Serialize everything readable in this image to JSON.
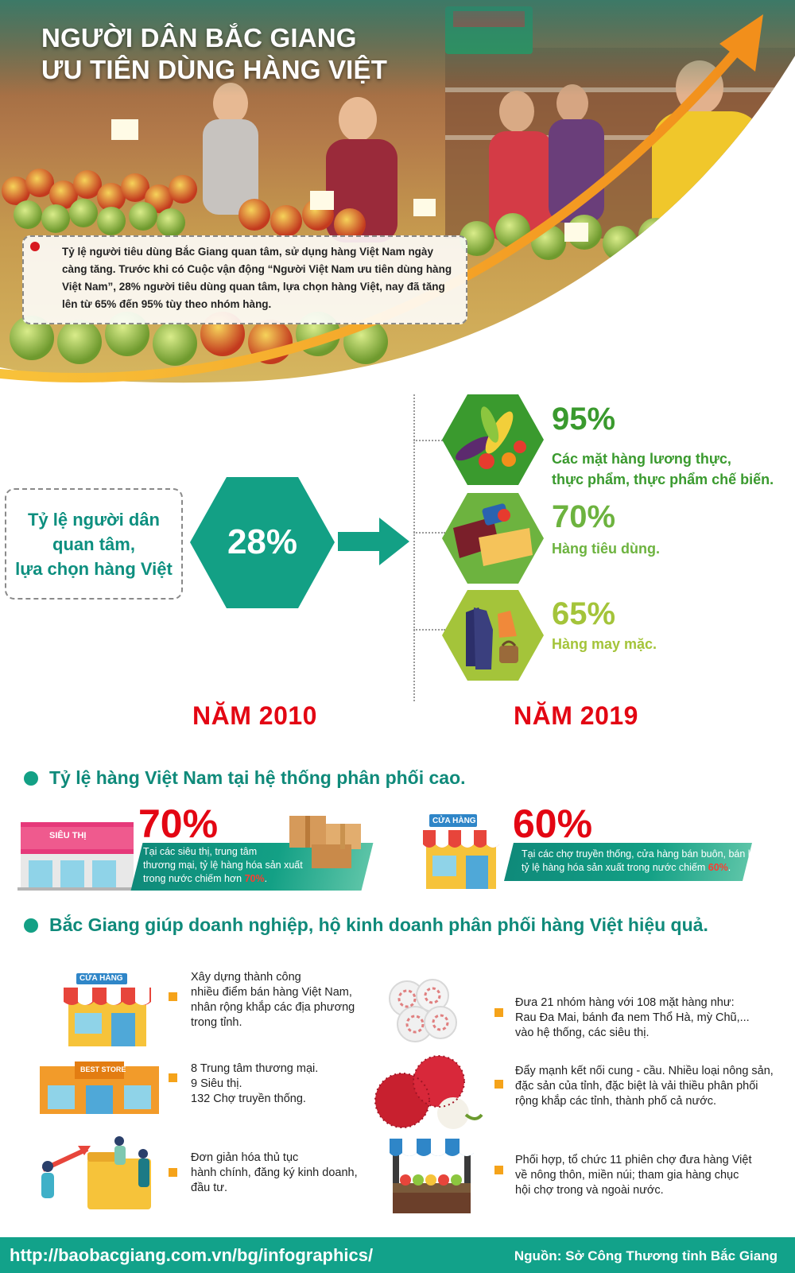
{
  "header": {
    "title_line1": "NGƯỜI DÂN BẮC GIANG",
    "title_line2": "ƯU TIÊN DÙNG HÀNG VIỆT"
  },
  "intro": "Tỷ lệ người tiêu dùng Bắc Giang quan tâm, sử dụng hàng Việt  Nam ngày càng tăng. Trước khi có Cuộc vận động “Người Việt Nam ưu tiên dùng hàng Việt Nam”, 28% người tiêu dùng quan tâm, lựa chọn hàng Việt, nay đã tăng lên từ 65% đến 95% tùy theo nhóm hàng.",
  "comparison": {
    "label": "Tỷ lệ người dân\nquan tâm,\nlựa chọn hàng Việt",
    "value_2010": "28%",
    "year_2010": "NĂM 2010",
    "year_2019": "NĂM 2019",
    "categories": [
      {
        "percent": "95%",
        "description": "Các mặt hàng lương thực,\nthực phẩm, thực phẩm chế biến.",
        "icon": "vegetables-icon",
        "color": "#3a9a2e"
      },
      {
        "percent": "70%",
        "description": "Hàng tiêu dùng.",
        "icon": "consumer-goods-icon",
        "color": "#6db33f"
      },
      {
        "percent": "65%",
        "description": "Hàng may mặc.",
        "icon": "clothing-icon",
        "color": "#a4c43a"
      }
    ]
  },
  "distribution": {
    "heading": "Tỷ lệ hàng Việt Nam tại hệ thống phân phối cao.",
    "supermarket": {
      "sign": "SIÊU THỊ",
      "percent": "70%",
      "text": "Tại các siêu thị, trung tâm\nthương mại, tỷ lệ hàng hóa sản xuất\ntrong nước chiếm hơn ",
      "highlight": "70%",
      "suffix": "."
    },
    "store": {
      "sign": "CỬA HÀNG",
      "percent": "60%",
      "text": "Tại các chợ truyền thống, cửa hàng bán buôn, bán lẻ,\ntỷ lệ hàng hóa sản xuất trong nước chiếm ",
      "highlight": "60%",
      "suffix": "."
    }
  },
  "solutions": {
    "heading": "Bắc Giang giúp doanh nghiệp, hộ kinh doanh phân phối  hàng Việt hiệu quả.",
    "store_sign": "CỬA HÀNG",
    "mall_sign": "BEST STORE",
    "items": [
      {
        "text": "Xây dựng thành công\nnhiều điểm bán hàng Việt Nam,\nnhân rộng khắp các địa phương\ntrong tỉnh."
      },
      {
        "text": "8 Trung tâm thương mại.\n9 Siêu thị.\n132 Chợ truyền thống."
      },
      {
        "text": "Đơn giản hóa thủ tục\nhành chính, đăng ký kinh doanh,\nđầu tư."
      },
      {
        "text": "Đưa 21 nhóm hàng với 108 mặt hàng như:\nRau Đa Mai, bánh đa nem Thổ Hà, mỳ Chũ,...\nvào hệ thống, các siêu thị."
      },
      {
        "text": "Đẩy mạnh kết nối cung - cầu. Nhiều loại nông sản,\nđặc sản của tỉnh, đặc biệt là vải thiều phân phối\nrộng khắp các tỉnh, thành phố cả nước."
      },
      {
        "text": "Phối hợp, tổ chức 11 phiên chợ đưa hàng Việt\nvề nông thôn, miền núi; tham gia hàng chục\nhội chợ trong và ngoài nước."
      }
    ]
  },
  "footer": {
    "url": "http://baobacgiang.com.vn/bg/infographics/",
    "source": "Nguồn: Sở Công Thương tỉnh Bắc Giang"
  },
  "colors": {
    "teal": "#13a085",
    "red": "#e30613",
    "orange": "#f5a31a"
  }
}
